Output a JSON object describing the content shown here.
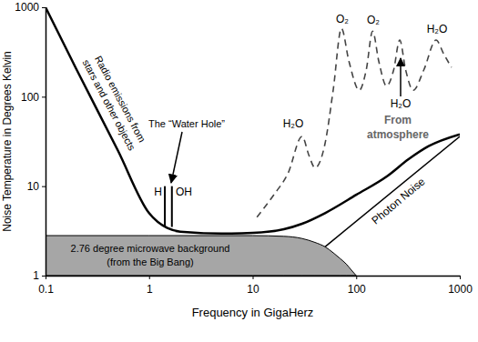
{
  "chart_data": {
    "type": "line",
    "x_label": "Frequency in GigaHerz",
    "y_label": "Noise Temperature in Degrees Kelvin",
    "log": true,
    "grid": false,
    "xlim": [
      0.1,
      1000
    ],
    "ylim": [
      1,
      1000
    ],
    "xticks": [
      0.1,
      1,
      10,
      100,
      1000
    ],
    "yticks": [
      1,
      10,
      100,
      1000
    ],
    "series": [
      {
        "type": "line",
        "color": "#000000",
        "x": [
          0.1,
          0.2,
          0.5,
          1,
          1.5,
          2,
          5,
          10,
          20,
          30,
          50,
          100,
          200,
          320,
          500,
          1000
        ],
        "values": [
          1000,
          200,
          25,
          5,
          3.4,
          3.1,
          2.95,
          3,
          3.3,
          3.8,
          5,
          8,
          13,
          20,
          28,
          38
        ]
      },
      {
        "name": "Photon Noise",
        "type": "line",
        "color": "#000000",
        "x": [
          50,
          1000
        ],
        "values": [
          2.1,
          36
        ]
      },
      {
        "type": "area",
        "color": "#a6a6a6",
        "x": [
          0.1,
          1,
          10,
          20,
          30,
          40,
          50,
          60,
          70,
          80,
          90,
          100
        ],
        "values": [
          2.8,
          2.8,
          2.8,
          2.75,
          2.6,
          2.35,
          2.1,
          1.8,
          1.55,
          1.35,
          1.15,
          1
        ]
      },
      {
        "type": "line",
        "line_style": "dashed",
        "color": "#444444",
        "x": [
          11,
          16,
          22,
          30,
          35,
          40,
          50,
          60,
          72,
          85,
          107,
          125,
          144,
          165,
          196,
          230,
          263,
          300,
          355,
          450,
          590,
          700,
          830
        ],
        "values": [
          4.5,
          8,
          14,
          36,
          22,
          16,
          30,
          120,
          580,
          250,
          118,
          200,
          540,
          250,
          132,
          200,
          430,
          200,
          118,
          200,
          430,
          300,
          213
        ]
      },
      {
        "name": "H",
        "type": "line",
        "color": "#000000",
        "x": [
          1.42,
          1.42
        ],
        "values": [
          3.5,
          10
        ]
      },
      {
        "name": "OH",
        "type": "line",
        "color": "#000000",
        "x": [
          1.66,
          1.66
        ],
        "values": [
          3.5,
          10
        ]
      }
    ],
    "annotations": [
      "Radio emissions from",
      "stars and other objects",
      "The “Water Hole”",
      "2.76 degree microwave background",
      "(from the Big Bang)",
      "From",
      "atmosphere",
      "H₂O",
      "O₂",
      "O₂",
      "H₂O",
      "H₂O"
    ]
  }
}
